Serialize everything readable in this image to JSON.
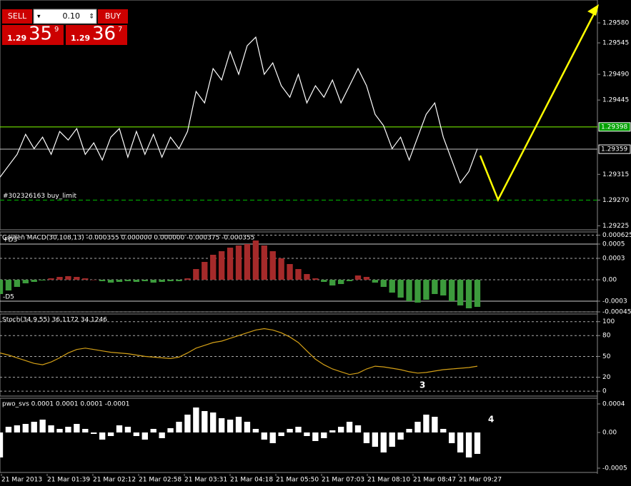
{
  "trade_panel": {
    "sell": "SELL",
    "lot": "0.10",
    "buy": "BUY",
    "bid": {
      "prefix": "1.29",
      "big": "35",
      "small": "9"
    },
    "ask": {
      "prefix": "1.29",
      "big": "36",
      "small": "7"
    }
  },
  "time_labels": [
    "21 Mar 2013",
    "21 Mar 01:39",
    "21 Mar 02:12",
    "21 Mar 02:58",
    "21 Mar 03:31",
    "21 Mar 04:18",
    "21 Mar 05:50",
    "21 Mar 07:03",
    "21 Mar 08:10",
    "21 Mar 08:47",
    "21 Mar 09:27"
  ],
  "annotations": [
    "3",
    "4"
  ],
  "chart_data": [
    {
      "type": "line",
      "color": "#ffffff",
      "values": [
        1.2931,
        1.2933,
        1.2935,
        1.29385,
        1.2936,
        1.2938,
        1.2935,
        1.2939,
        1.29375,
        1.29395,
        1.2935,
        1.2937,
        1.2934,
        1.2938,
        1.29395,
        1.29345,
        1.2939,
        1.2935,
        1.29385,
        1.29345,
        1.2938,
        1.2936,
        1.2939,
        1.2946,
        1.2944,
        1.295,
        1.2948,
        1.2953,
        1.2949,
        1.2954,
        1.29555,
        1.2949,
        1.2951,
        1.2947,
        1.2945,
        1.2949,
        1.2944,
        1.2947,
        1.2945,
        1.2948,
        1.2944,
        1.2947,
        1.295,
        1.2947,
        1.2942,
        1.294,
        1.2936,
        1.2938,
        1.2934,
        1.2938,
        1.2942,
        1.2944,
        1.2938,
        1.2934,
        1.293,
        1.2932,
        1.2936
      ],
      "ylim": [
        1.29218,
        1.2962
      ],
      "yticks": [
        {
          "value": 1.2958,
          "label": "1.29580"
        },
        {
          "value": 1.29545,
          "label": "1.29545"
        },
        {
          "value": 1.2949,
          "label": "1.29490"
        },
        {
          "value": 1.29445,
          "label": "1.29445"
        },
        {
          "value": 1.29315,
          "label": "1.29315"
        },
        {
          "value": 1.2927,
          "label": "1.29270"
        },
        {
          "value": 1.29225,
          "label": "1.29225"
        }
      ],
      "levels": [
        {
          "value": 1.29398,
          "label": "1.29398",
          "color": "#7fff00"
        },
        {
          "value": 1.29359,
          "label": "1.29359",
          "color": "#c0c0c0"
        },
        {
          "value": 1.2927,
          "label": "#302326163 buy_limit",
          "color": "#00c000"
        }
      ]
    },
    {
      "type": "bar",
      "title": "Golden MACD(30,108,13) -0.000355 0.000000 0.000000 -0.000375 -0.000355",
      "colors": {
        "positive": "#a52a2a",
        "negative": "#3c9b3c"
      },
      "values": [
        -0.0002,
        -0.00015,
        -0.0001,
        -5e-05,
        -3e-05,
        -1e-05,
        2e-05,
        4e-05,
        5e-05,
        4e-05,
        2e-05,
        0,
        -2e-05,
        -4e-05,
        -3e-05,
        -2e-05,
        -3e-05,
        -2e-05,
        -4e-05,
        -3e-05,
        -2e-05,
        -2e-05,
        2e-05,
        0.00015,
        0.00025,
        0.00035,
        0.0004,
        0.00045,
        0.00048,
        0.0005,
        0.00055,
        0.00048,
        0.0004,
        0.0003,
        0.00022,
        0.00015,
        8e-05,
        2e-05,
        -3e-05,
        -8e-05,
        -6e-05,
        -2e-05,
        6e-05,
        4e-05,
        -4e-05,
        -0.0001,
        -0.00018,
        -0.00025,
        -0.0003,
        -0.00032,
        -0.00028,
        -0.0002,
        -0.00022,
        -0.0003,
        -0.00036,
        -0.0004,
        -0.00038
      ],
      "ylim": [
        -0.00045,
        0.00067
      ],
      "yticks": [
        0.000625,
        0.0005,
        0.0003,
        {
          "value": 0,
          "label": "0.00"
        },
        -0.0003,
        -0.00045
      ],
      "levels": [
        {
          "value": 0.0005,
          "label": "+D3"
        },
        {
          "value": -0.0003,
          "label": "-D5"
        }
      ]
    },
    {
      "type": "line",
      "title": "Stoch(34,9,55) 36.1172 34.1246",
      "color": "#d4a017",
      "grid": true,
      "values": [
        55,
        52,
        48,
        44,
        40,
        38,
        42,
        48,
        55,
        60,
        62,
        60,
        58,
        56,
        55,
        54,
        52,
        50,
        49,
        48,
        47,
        49,
        55,
        62,
        66,
        70,
        72,
        76,
        80,
        84,
        88,
        90,
        88,
        84,
        78,
        70,
        58,
        46,
        38,
        32,
        28,
        24,
        26,
        32,
        36,
        35,
        33,
        31,
        28,
        26,
        27,
        29,
        31,
        32,
        33,
        34,
        36
      ],
      "ylim": [
        -7,
        111
      ],
      "yticks": [
        100,
        80,
        50,
        20,
        0
      ]
    },
    {
      "type": "bar",
      "title": "pwo_svs 0.0001 0.0001 0.0001 -0.0001",
      "colors": {
        "positive": "#ffffff",
        "negative": "#ffffff"
      },
      "values": [
        -0.00035,
        8e-05,
        0.0001,
        0.00012,
        0.00015,
        0.00018,
        0.0001,
        5e-05,
        8e-05,
        0.00012,
        5e-05,
        -2e-05,
        -0.0001,
        -5e-05,
        0.0001,
        8e-05,
        -5e-05,
        -0.0001,
        5e-05,
        -8e-05,
        6e-05,
        0.00015,
        0.00025,
        0.00035,
        0.0003,
        0.00028,
        0.0002,
        0.00018,
        0.00022,
        0.00015,
        5e-05,
        -0.0001,
        -0.00015,
        -5e-05,
        5e-05,
        8e-05,
        -5e-05,
        -0.00012,
        -8e-05,
        3e-05,
        8e-05,
        0.00015,
        0.0001,
        -0.00015,
        -0.0002,
        -0.00028,
        -0.0002,
        -0.0001,
        5e-05,
        0.00015,
        0.00025,
        0.00022,
        5e-05,
        -0.00015,
        -0.00028,
        -0.00035,
        -0.0003
      ],
      "ylim": [
        -0.00056,
        0.00048
      ],
      "yticks": [
        0.0004,
        {
          "value": 0,
          "label": "0.00"
        },
        -0.0005
      ]
    }
  ]
}
